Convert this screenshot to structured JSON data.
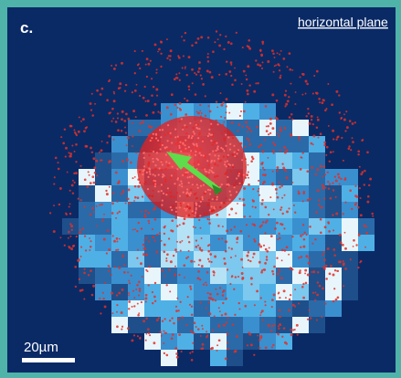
{
  "panel": {
    "letter": "c.",
    "view_label": "horizontal plane",
    "scale_bar_label": "20µm"
  },
  "colors": {
    "frame_border": "#4fb3a9",
    "background": "#0a2a66",
    "tile_palette": [
      "#1f4f8a",
      "#2b6aa8",
      "#3a8fcf",
      "#4fb0e6",
      "#7cc8ee",
      "#b6e2f5",
      "#e8f6fb"
    ],
    "dot": "#e0302a",
    "nucleus": "#e01e1e",
    "arrow": "#5fdc4a",
    "scale_bar": "#ffffff"
  },
  "icons": [
    "arrow-icon",
    "scale-bar"
  ]
}
